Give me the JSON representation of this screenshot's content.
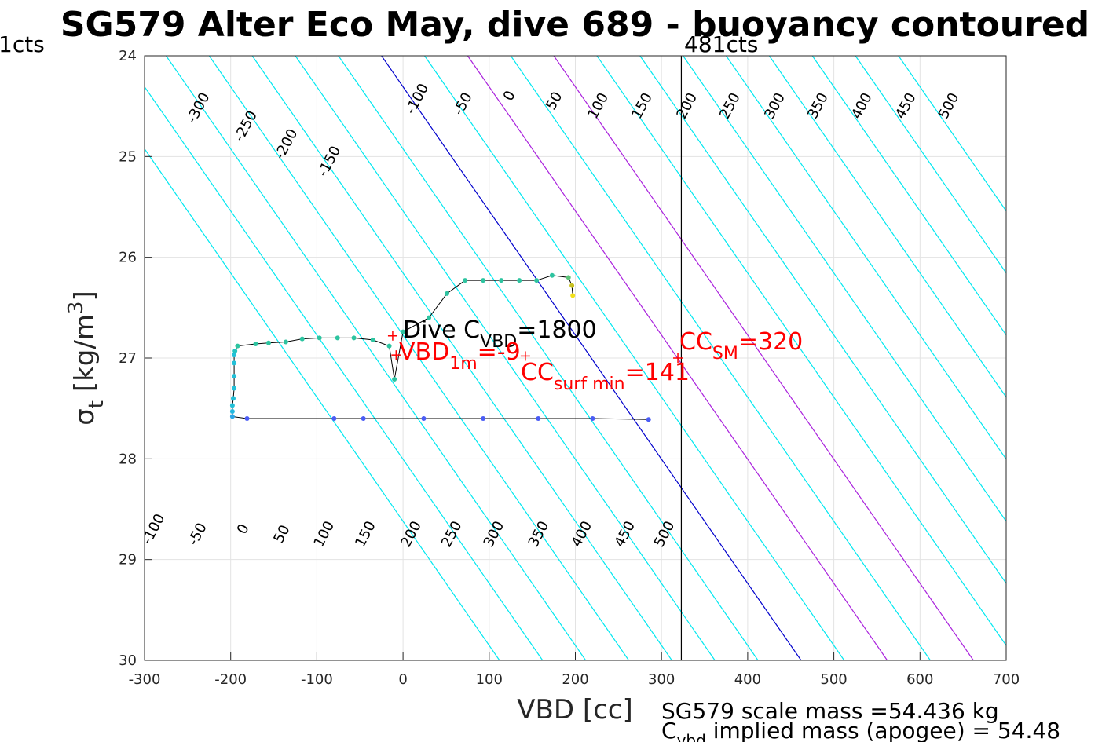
{
  "chart_data": {
    "type": "scatter",
    "title": "SG579 Alter Eco May, dive 689 - buoyancy contoured",
    "xlabel": "VBD [cc]",
    "ylabel_base": "σ",
    "ylabel_sub": "t",
    "ylabel_units": " [kg/m",
    "ylabel_sup": "3",
    "ylabel_close": "]",
    "xlim": [
      -300,
      700
    ],
    "ylim": [
      24,
      30
    ],
    "y_reversed": true,
    "x_ticks": [
      -300,
      -200,
      -100,
      0,
      100,
      200,
      300,
      400,
      500,
      600,
      700
    ],
    "x_tick_labels": [
      "-300",
      "-200",
      "-100",
      "0",
      "100",
      "200",
      "300",
      "400",
      "500",
      "600",
      "700"
    ],
    "y_ticks": [
      24,
      25,
      26,
      27,
      28,
      29,
      30
    ],
    "y_tick_labels": [
      "24",
      "25",
      "26",
      "27",
      "28",
      "29",
      "30"
    ],
    "grid": true,
    "contours": {
      "levels": [
        -350,
        -300,
        -250,
        -200,
        -150,
        -100,
        -50,
        0,
        50,
        100,
        150,
        200,
        250,
        300,
        350,
        400,
        450,
        500,
        550,
        600
      ],
      "zero_level_color": "#0000cc",
      "highlight_levels": [
        100,
        200
      ],
      "highlight_color": "#aa22dd",
      "default_color": "#00e8f0",
      "top_labels": [
        {
          "text": "-300",
          "x": -237,
          "y": 24.52
        },
        {
          "text": "-250",
          "x": -182,
          "y": 24.7
        },
        {
          "text": "-200",
          "x": -135,
          "y": 24.88
        },
        {
          "text": "-150",
          "x": -85,
          "y": 25.05
        },
        {
          "text": "-100",
          "x": 17,
          "y": 24.43
        },
        {
          "text": "-50",
          "x": 70,
          "y": 24.48
        },
        {
          "text": "0",
          "x": 124,
          "y": 24.4
        },
        {
          "text": "50",
          "x": 176,
          "y": 24.45
        },
        {
          "text": "100",
          "x": 227,
          "y": 24.5
        },
        {
          "text": "150",
          "x": 278,
          "y": 24.5
        },
        {
          "text": "200",
          "x": 330,
          "y": 24.5
        },
        {
          "text": "250",
          "x": 380,
          "y": 24.5
        },
        {
          "text": "300",
          "x": 432,
          "y": 24.5
        },
        {
          "text": "350",
          "x": 482,
          "y": 24.5
        },
        {
          "text": "400",
          "x": 533,
          "y": 24.5
        },
        {
          "text": "450",
          "x": 584,
          "y": 24.5
        },
        {
          "text": "500",
          "x": 634,
          "y": 24.5
        }
      ],
      "bottom_labels": [
        {
          "text": "-100",
          "x": -289,
          "y": 28.7
        },
        {
          "text": "-50",
          "x": -238,
          "y": 28.75
        },
        {
          "text": "0",
          "x": -185,
          "y": 28.7
        },
        {
          "text": "50",
          "x": -140,
          "y": 28.75
        },
        {
          "text": "100",
          "x": -91,
          "y": 28.75
        },
        {
          "text": "150",
          "x": -43,
          "y": 28.75
        },
        {
          "text": "200",
          "x": 10,
          "y": 28.75
        },
        {
          "text": "250",
          "x": 57,
          "y": 28.75
        },
        {
          "text": "300",
          "x": 106,
          "y": 28.75
        },
        {
          "text": "350",
          "x": 158,
          "y": 28.75
        },
        {
          "text": "400",
          "x": 208,
          "y": 28.75
        },
        {
          "text": "450",
          "x": 258,
          "y": 28.75
        },
        {
          "text": "500",
          "x": 304,
          "y": 28.75
        }
      ]
    },
    "dive_trace": {
      "line_color": "#000000",
      "x": [
        285,
        220,
        157,
        93,
        24,
        -46,
        -80,
        -181,
        -198,
        -198,
        -198,
        -197,
        -196,
        -196,
        -196,
        -196,
        -195,
        -192,
        -171,
        -156,
        -136,
        -117,
        -97,
        -76,
        -57,
        -35,
        -16,
        -10,
        0,
        30,
        51,
        72,
        93,
        114,
        135,
        155,
        173,
        192,
        196,
        197
      ],
      "y": [
        27.61,
        27.6,
        27.6,
        27.6,
        27.6,
        27.6,
        27.6,
        27.6,
        27.58,
        27.53,
        27.47,
        27.4,
        27.3,
        27.18,
        27.05,
        26.97,
        26.93,
        26.88,
        26.86,
        26.85,
        26.84,
        26.81,
        26.8,
        26.8,
        26.8,
        26.82,
        26.88,
        27.21,
        26.74,
        26.6,
        26.36,
        26.23,
        26.23,
        26.23,
        26.23,
        26.23,
        26.18,
        26.2,
        26.28,
        26.38
      ],
      "colors": [
        "#4a5cf5",
        "#4a5cf5",
        "#4a5cf5",
        "#4a5cf5",
        "#4a5cf5",
        "#4a5cf5",
        "#4a5cf5",
        "#4a5cf5",
        "#2aa8e8",
        "#22b8e0",
        "#22c0d8",
        "#22c0d8",
        "#22c0d8",
        "#22c0d8",
        "#22c0d8",
        "#22c0d8",
        "#25c4c0",
        "#2dc4a0",
        "#2dc4a0",
        "#2dc4a0",
        "#2dc4a0",
        "#2dc4a0",
        "#2dc4a0",
        "#2dc4a0",
        "#2dc4a0",
        "#2dc4a0",
        "#2dc4a0",
        "#2dc4a0",
        "#2dc4a0",
        "#2dc4a0",
        "#2dc4a0",
        "#2dc4a0",
        "#2dc4a0",
        "#2dc4a0",
        "#2dc4a0",
        "#2dc4a0",
        "#2dc4a0",
        "#5cc47a",
        "#c8c020",
        "#f2e01a"
      ]
    },
    "apogee_line": {
      "x": 323,
      "color": "#000000"
    },
    "markers": [
      {
        "x": -8,
        "y": 26.97,
        "color": "#ff0000"
      },
      {
        "x": -12,
        "y": 26.78,
        "color": "#ff0000"
      },
      {
        "x": 142,
        "y": 26.98,
        "color": "#ff0000"
      },
      {
        "x": 319,
        "y": 27.0,
        "color": "#ff0000"
      }
    ],
    "annotations": {
      "dive_c_prefix": "Dive C",
      "dive_c_sub": "VBD",
      "dive_c_suffix": "=1800",
      "vbd1m_prefix": "VBD",
      "vbd1m_sub": "1m",
      "vbd1m_suffix": "=-9",
      "ccsurf_prefix": "CC",
      "ccsurf_sub": "surf min",
      "ccsurf_suffix": "=141",
      "ccsm_prefix": "CC",
      "ccsm_sub": "SM",
      "ccsm_suffix": "=320",
      "left_counts": "1cts",
      "right_counts": "481cts",
      "red_color": "#ff0000"
    },
    "footer": {
      "scale_mass": "SG579 scale mass =54.436 kg",
      "implied_prefix": "C",
      "implied_sub": "vbd",
      "implied_suffix": " implied mass (apogee) = 54.48"
    }
  }
}
